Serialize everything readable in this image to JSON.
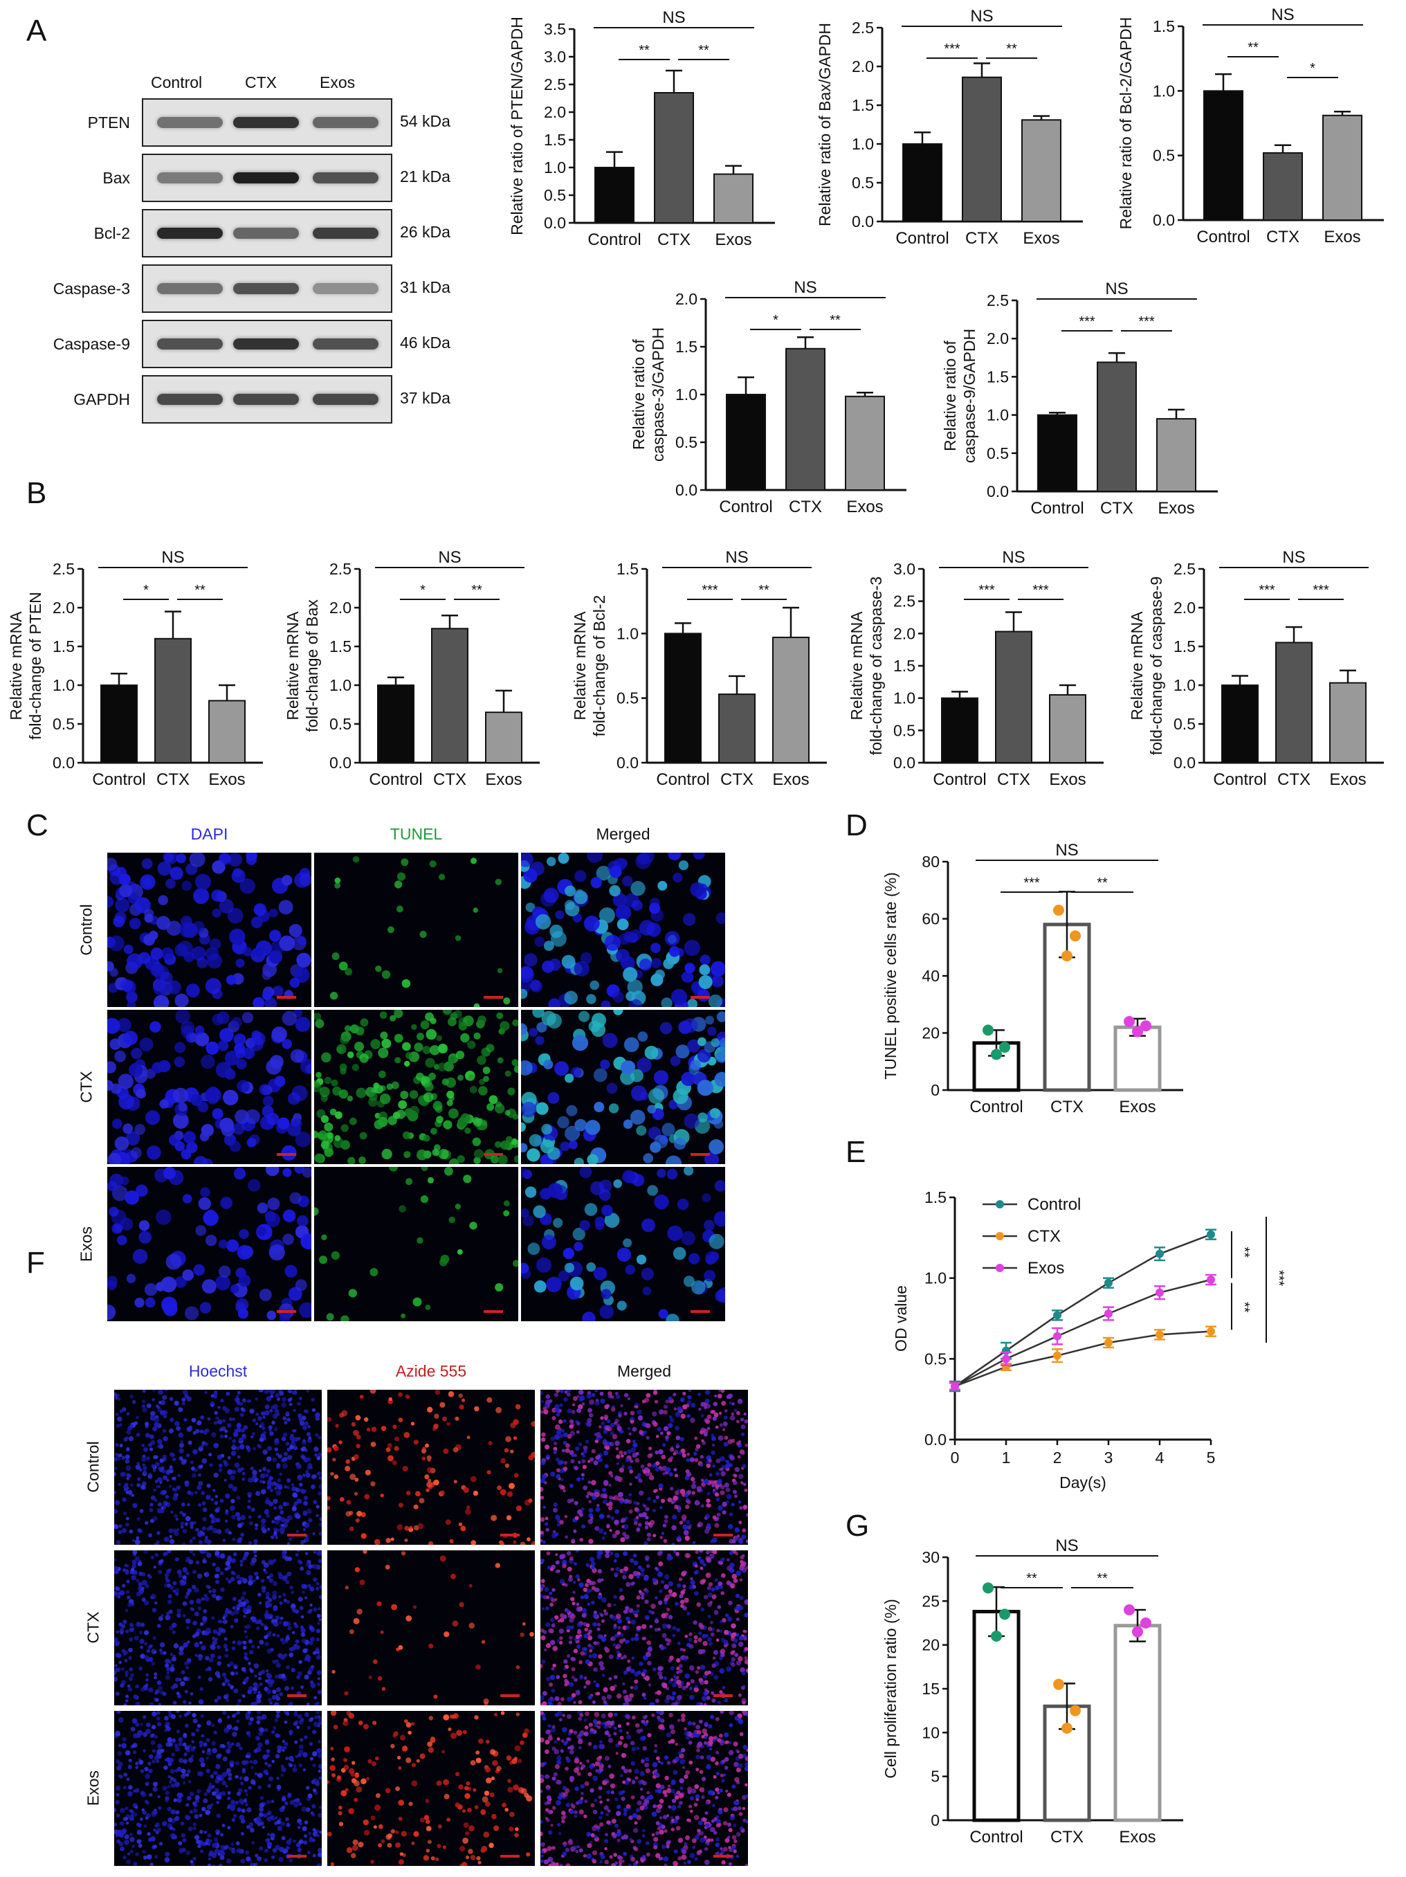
{
  "panel_labels": {
    "A": "A",
    "B": "B",
    "C": "C",
    "D": "D",
    "E": "E",
    "F": "F",
    "G": "G"
  },
  "western_blot": {
    "columns": [
      "Control",
      "CTX",
      "Exos"
    ],
    "rows": [
      {
        "label": "PTEN",
        "kda": "54 kDa"
      },
      {
        "label": "Bax",
        "kda": "21 kDa"
      },
      {
        "label": "Bcl-2",
        "kda": "26 kDa"
      },
      {
        "label": "Caspase-3",
        "kda": "31 kDa"
      },
      {
        "label": "Caspase-9",
        "kda": "46 kDa"
      },
      {
        "label": "GAPDH",
        "kda": "37 kDa"
      }
    ]
  },
  "micrographs_C": {
    "columns": [
      "DAPI",
      "TUNEL",
      "Merged"
    ],
    "column_colors": [
      "#2b2bd6",
      "#1f9a3a",
      "#111111"
    ],
    "rows": [
      "Control",
      "CTX",
      "Exos"
    ]
  },
  "micrographs_F": {
    "columns": [
      "Hoechst",
      "Azide 555",
      "Merged"
    ],
    "column_colors": [
      "#2b2bd6",
      "#c0201e",
      "#111111"
    ],
    "rows": [
      "Control",
      "CTX",
      "Exos"
    ]
  },
  "colors": {
    "control": "#0a0a0a",
    "ctx": "#555555",
    "exos": "#999999",
    "green": "#1a9a6a",
    "orange": "#f0961e",
    "magenta": "#e040e0",
    "teal": "#1f8a8a"
  },
  "chart_data": [
    {
      "id": "A1",
      "type": "bar",
      "categories": [
        "Control",
        "CTX",
        "Exos"
      ],
      "values": [
        1.0,
        2.35,
        0.88
      ],
      "errors": [
        0.28,
        0.4,
        0.15
      ],
      "ylabel": "Relative ratio of PTEN/GAPDH",
      "ylim": [
        0,
        3.5
      ],
      "yticks": [
        0.0,
        0.5,
        1.0,
        1.5,
        2.0,
        2.5,
        3.0,
        3.5
      ],
      "tickfmt": "0.0",
      "annotations": [
        {
          "from": 0,
          "to": 2,
          "text": "NS",
          "level": 2
        },
        {
          "from": 0,
          "to": 1,
          "text": "**",
          "level": 1
        },
        {
          "from": 1,
          "to": 2,
          "text": "**",
          "level": 1
        }
      ]
    },
    {
      "id": "A2",
      "type": "bar",
      "categories": [
        "Control",
        "CTX",
        "Exos"
      ],
      "values": [
        1.0,
        1.86,
        1.31
      ],
      "errors": [
        0.15,
        0.18,
        0.05
      ],
      "ylabel": "Relative ratio of Bax/GAPDH",
      "ylim": [
        0,
        2.5
      ],
      "yticks": [
        0.0,
        0.5,
        1.0,
        1.5,
        2.0,
        2.5
      ],
      "tickfmt": "0.0",
      "annotations": [
        {
          "from": 0,
          "to": 2,
          "text": "NS",
          "level": 2
        },
        {
          "from": 0,
          "to": 1,
          "text": "***",
          "level": 1
        },
        {
          "from": 1,
          "to": 2,
          "text": "**",
          "level": 1
        }
      ]
    },
    {
      "id": "A3",
      "type": "bar",
      "categories": [
        "Control",
        "CTX",
        "Exos"
      ],
      "values": [
        1.0,
        0.52,
        0.81
      ],
      "errors": [
        0.13,
        0.06,
        0.03
      ],
      "ylabel": "Relative ratio of Bcl-2/GAPDH",
      "ylim": [
        0,
        1.5
      ],
      "yticks": [
        0.0,
        0.5,
        1.0,
        1.5
      ],
      "tickfmt": "0.0",
      "annotations": [
        {
          "from": 0,
          "to": 2,
          "text": "NS",
          "level": 2
        },
        {
          "from": 0,
          "to": 1,
          "text": "**",
          "level": 1
        },
        {
          "from": 1,
          "to": 2,
          "text": "*",
          "level": 0.5
        }
      ]
    },
    {
      "id": "A4",
      "type": "bar",
      "categories": [
        "Control",
        "CTX",
        "Exos"
      ],
      "values": [
        1.0,
        1.48,
        0.98
      ],
      "errors": [
        0.18,
        0.12,
        0.04
      ],
      "ylabel": "Relative ratio of caspase-3/GAPDH",
      "ylim": [
        0,
        2.0
      ],
      "yticks": [
        0.0,
        0.5,
        1.0,
        1.5,
        2.0
      ],
      "tickfmt": "0.0",
      "annotations": [
        {
          "from": 0,
          "to": 2,
          "text": "NS",
          "level": 2
        },
        {
          "from": 0,
          "to": 1,
          "text": "*",
          "level": 1
        },
        {
          "from": 1,
          "to": 2,
          "text": "**",
          "level": 1
        }
      ]
    },
    {
      "id": "A5",
      "type": "bar",
      "categories": [
        "Control",
        "CTX",
        "Exos"
      ],
      "values": [
        1.0,
        1.69,
        0.95
      ],
      "errors": [
        0.03,
        0.12,
        0.12
      ],
      "ylabel": "Relative ratio of caspase-9/GAPDH",
      "ylim": [
        0,
        2.5
      ],
      "yticks": [
        0.0,
        0.5,
        1.0,
        1.5,
        2.0,
        2.5
      ],
      "tickfmt": "0.0",
      "annotations": [
        {
          "from": 0,
          "to": 2,
          "text": "NS",
          "level": 2
        },
        {
          "from": 0,
          "to": 1,
          "text": "***",
          "level": 1
        },
        {
          "from": 1,
          "to": 2,
          "text": "***",
          "level": 1
        }
      ]
    },
    {
      "id": "B1",
      "type": "bar",
      "categories": [
        "Control",
        "CTX",
        "Exos"
      ],
      "values": [
        1.0,
        1.6,
        0.8
      ],
      "errors": [
        0.15,
        0.35,
        0.2
      ],
      "ylabel": "Relative mRNA fold-change of PTEN",
      "ylim": [
        0,
        2.5
      ],
      "yticks": [
        0.0,
        0.5,
        1.0,
        1.5,
        2.0,
        2.5
      ],
      "tickfmt": "0.0",
      "annotations": [
        {
          "from": 0,
          "to": 2,
          "text": "NS",
          "level": 2
        },
        {
          "from": 0,
          "to": 1,
          "text": "*",
          "level": 1
        },
        {
          "from": 1,
          "to": 2,
          "text": "**",
          "level": 1
        }
      ]
    },
    {
      "id": "B2",
      "type": "bar",
      "categories": [
        "Control",
        "CTX",
        "Exos"
      ],
      "values": [
        1.0,
        1.73,
        0.65
      ],
      "errors": [
        0.1,
        0.17,
        0.28
      ],
      "ylabel": "Relative mRNA fold-change of Bax",
      "ylim": [
        0,
        2.5
      ],
      "yticks": [
        0.0,
        0.5,
        1.0,
        1.5,
        2.0,
        2.5
      ],
      "tickfmt": "0.0",
      "annotations": [
        {
          "from": 0,
          "to": 2,
          "text": "NS",
          "level": 2
        },
        {
          "from": 0,
          "to": 1,
          "text": "*",
          "level": 1
        },
        {
          "from": 1,
          "to": 2,
          "text": "**",
          "level": 1
        }
      ]
    },
    {
      "id": "B3",
      "type": "bar",
      "categories": [
        "Control",
        "CTX",
        "Exos"
      ],
      "values": [
        1.0,
        0.53,
        0.97
      ],
      "errors": [
        0.08,
        0.14,
        0.23
      ],
      "ylabel": "Relative mRNA fold-change of Bcl-2",
      "ylim": [
        0,
        1.5
      ],
      "yticks": [
        0.0,
        0.5,
        1.0,
        1.5
      ],
      "tickfmt": "0.0",
      "annotations": [
        {
          "from": 0,
          "to": 2,
          "text": "NS",
          "level": 2
        },
        {
          "from": 0,
          "to": 1,
          "text": "***",
          "level": 1
        },
        {
          "from": 1,
          "to": 2,
          "text": "**",
          "level": 1
        }
      ]
    },
    {
      "id": "B4",
      "type": "bar",
      "categories": [
        "Control",
        "CTX",
        "Exos"
      ],
      "values": [
        1.0,
        2.03,
        1.05
      ],
      "errors": [
        0.1,
        0.3,
        0.15
      ],
      "ylabel": "Relative mRNA fold-change of caspase-3",
      "ylim": [
        0,
        3.0
      ],
      "yticks": [
        0.0,
        0.5,
        1.0,
        1.5,
        2.0,
        2.5,
        3.0
      ],
      "tickfmt": "0.0",
      "annotations": [
        {
          "from": 0,
          "to": 2,
          "text": "NS",
          "level": 2
        },
        {
          "from": 0,
          "to": 1,
          "text": "***",
          "level": 1
        },
        {
          "from": 1,
          "to": 2,
          "text": "***",
          "level": 1
        }
      ]
    },
    {
      "id": "B5",
      "type": "bar",
      "categories": [
        "Control",
        "CTX",
        "Exos"
      ],
      "values": [
        1.0,
        1.55,
        1.03
      ],
      "errors": [
        0.12,
        0.2,
        0.16
      ],
      "ylabel": "Relative mRNA fold-change of caspase-9",
      "ylim": [
        0,
        2.5
      ],
      "yticks": [
        0.0,
        0.5,
        1.0,
        1.5,
        2.0,
        2.5
      ],
      "tickfmt": "0.0",
      "annotations": [
        {
          "from": 0,
          "to": 2,
          "text": "NS",
          "level": 2
        },
        {
          "from": 0,
          "to": 1,
          "text": "***",
          "level": 1
        },
        {
          "from": 1,
          "to": 2,
          "text": "***",
          "level": 1
        }
      ]
    },
    {
      "id": "D",
      "type": "bar",
      "style": "outline",
      "categories": [
        "Control",
        "CTX",
        "Exos"
      ],
      "values": [
        16.5,
        58,
        22
      ],
      "errors": [
        4.5,
        11.5,
        3
      ],
      "points": [
        [
          21,
          15,
          12.5
        ],
        [
          63,
          54,
          47
        ],
        [
          24,
          22.5,
          20.5
        ]
      ],
      "ylabel": "TUNEL positive cells rate (%)",
      "ylim": [
        0,
        80
      ],
      "yticks": [
        0,
        20,
        40,
        60,
        80
      ],
      "tickfmt": "0",
      "annotations": [
        {
          "from": 0,
          "to": 2,
          "text": "NS",
          "level": 2
        },
        {
          "from": 0,
          "to": 1,
          "text": "***",
          "level": 1
        },
        {
          "from": 1,
          "to": 2,
          "text": "**",
          "level": 1
        }
      ]
    },
    {
      "id": "E",
      "type": "line",
      "x": [
        0,
        1,
        2,
        3,
        4,
        5
      ],
      "xlabel": "Day(s)",
      "ylabel": "OD value",
      "ylim": [
        0,
        1.5
      ],
      "yticks": [
        0.0,
        0.5,
        1.0,
        1.5
      ],
      "xticks": [
        0,
        1,
        2,
        3,
        4,
        5
      ],
      "series": [
        {
          "name": "Control",
          "values": [
            0.33,
            0.55,
            0.77,
            0.97,
            1.15,
            1.27
          ],
          "errors": [
            0.03,
            0.05,
            0.03,
            0.03,
            0.04,
            0.03
          ]
        },
        {
          "name": "CTX",
          "values": [
            0.33,
            0.45,
            0.52,
            0.6,
            0.65,
            0.67
          ],
          "errors": [
            0.02,
            0.02,
            0.04,
            0.03,
            0.03,
            0.03
          ]
        },
        {
          "name": "Exos",
          "values": [
            0.33,
            0.5,
            0.64,
            0.78,
            0.91,
            0.99
          ],
          "errors": [
            0.02,
            0.04,
            0.05,
            0.04,
            0.04,
            0.03
          ]
        }
      ],
      "sig": [
        {
          "text": "**",
          "between": [
            "Control",
            "Exos"
          ]
        },
        {
          "text": "**",
          "between": [
            "Exos",
            "CTX"
          ]
        },
        {
          "text": "***",
          "between": [
            "Control",
            "CTX"
          ]
        }
      ]
    },
    {
      "id": "G",
      "type": "bar",
      "style": "outline",
      "categories": [
        "Control",
        "CTX",
        "Exos"
      ],
      "values": [
        23.8,
        13,
        22.2
      ],
      "errors": [
        2.8,
        2.6,
        1.8
      ],
      "points": [
        [
          26.5,
          23.5,
          21
        ],
        [
          15.5,
          12.5,
          10.5
        ],
        [
          24,
          22.5,
          21.5
        ]
      ],
      "ylabel": "Cell proliferation ratio (%)",
      "ylim": [
        0,
        30
      ],
      "yticks": [
        0,
        5,
        10,
        15,
        20,
        25,
        30
      ],
      "tickfmt": "0",
      "annotations": [
        {
          "from": 0,
          "to": 2,
          "text": "NS",
          "level": 2
        },
        {
          "from": 0,
          "to": 1,
          "text": "**",
          "level": 1
        },
        {
          "from": 1,
          "to": 2,
          "text": "**",
          "level": 1
        }
      ]
    }
  ]
}
